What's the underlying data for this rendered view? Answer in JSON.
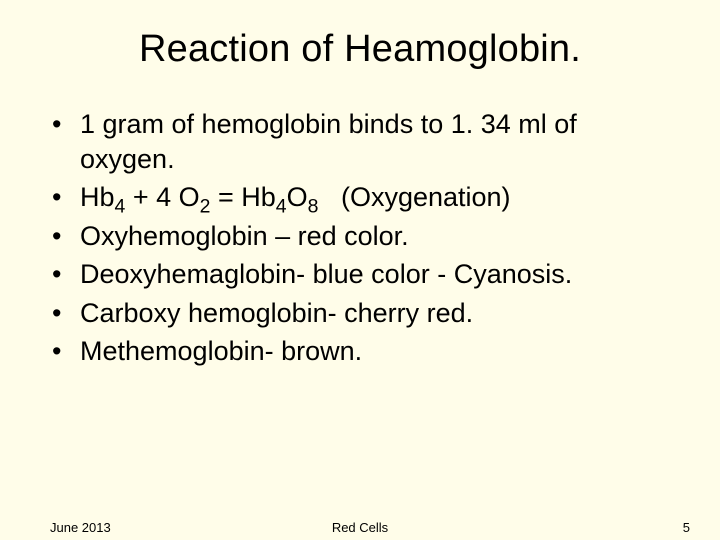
{
  "slide": {
    "background_color": "#fffde9",
    "text_color": "#000000",
    "title": "Reaction of Heamoglobin.",
    "title_fontsize": 38,
    "body_fontsize": 27,
    "bullets": [
      {
        "text": "1 gram of hemoglobin binds to 1. 34 ml of oxygen."
      },
      {
        "equation": {
          "lhs_base": "Hb",
          "lhs_sub": "4",
          "plus_base": "4 O",
          "plus_sub": "2",
          "rhs_base": "Hb",
          "rhs_sub1": "4",
          "rhs_base2": "O",
          "rhs_sub2": "8",
          "annotation": "(Oxygenation)"
        }
      },
      {
        "text": "Oxyhemoglobin – red color."
      },
      {
        "text": "Deoxyhemaglobin- blue color - Cyanosis."
      },
      {
        "text": "Carboxy hemoglobin- cherry red."
      },
      {
        "text": "Methemoglobin- brown."
      }
    ],
    "footer": {
      "date": "June 2013",
      "center": "Red Cells",
      "page_number": "5",
      "fontsize": 13
    }
  }
}
